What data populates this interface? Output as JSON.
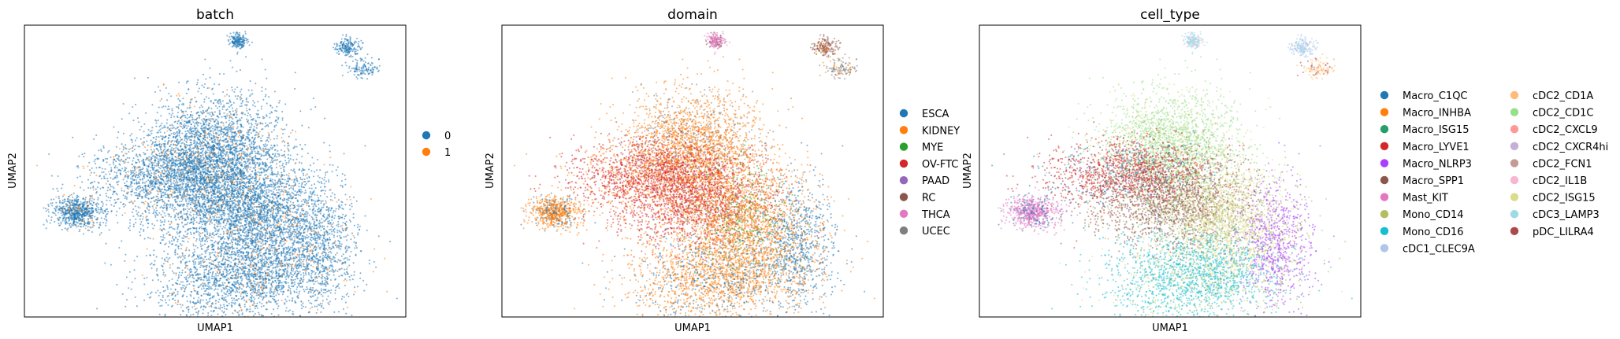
{
  "chart_data": [
    {
      "type": "scatter",
      "title": "batch",
      "xlabel": "UMAP1",
      "ylabel": "UMAP2",
      "ticks": "none",
      "legend_position": "right",
      "legend": [
        {
          "label": "0",
          "color": "#1f77b4"
        },
        {
          "label": "1",
          "color": "#ff7f0e"
        }
      ]
    },
    {
      "type": "scatter",
      "title": "domain",
      "xlabel": "UMAP1",
      "ylabel": "UMAP2",
      "ticks": "none",
      "legend_position": "right",
      "legend": [
        {
          "label": "ESCA",
          "color": "#1f77b4"
        },
        {
          "label": "KIDNEY",
          "color": "#ff7f0e"
        },
        {
          "label": "MYE",
          "color": "#2ca02c"
        },
        {
          "label": "OV-FTC",
          "color": "#d62728"
        },
        {
          "label": "PAAD",
          "color": "#9467bd"
        },
        {
          "label": "RC",
          "color": "#8c564b"
        },
        {
          "label": "THCA",
          "color": "#e377c2"
        },
        {
          "label": "UCEC",
          "color": "#7f7f7f"
        }
      ]
    },
    {
      "type": "scatter",
      "title": "cell_type",
      "xlabel": "UMAP1",
      "ylabel": "UMAP2",
      "ticks": "none",
      "legend_position": "right",
      "legend": [
        {
          "label": "Macro_C1QC",
          "color": "#1f77b4"
        },
        {
          "label": "Macro_INHBA",
          "color": "#ff7f0e"
        },
        {
          "label": "Macro_ISG15",
          "color": "#279e68"
        },
        {
          "label": "Macro_LYVE1",
          "color": "#d62728"
        },
        {
          "label": "Macro_NLRP3",
          "color": "#aa40fc"
        },
        {
          "label": "Macro_SPP1",
          "color": "#8c564b"
        },
        {
          "label": "Mast_KIT",
          "color": "#e377c2"
        },
        {
          "label": "Mono_CD14",
          "color": "#b5bd61"
        },
        {
          "label": "Mono_CD16",
          "color": "#17becf"
        },
        {
          "label": "cDC1_CLEC9A",
          "color": "#aec7e8"
        },
        {
          "label": "cDC2_CD1A",
          "color": "#ffbb78"
        },
        {
          "label": "cDC2_CD1C",
          "color": "#98df8a"
        },
        {
          "label": "cDC2_CXCL9",
          "color": "#ff9896"
        },
        {
          "label": "cDC2_CXCR4hi",
          "color": "#c5b0d5"
        },
        {
          "label": "cDC2_FCN1",
          "color": "#c49c94"
        },
        {
          "label": "cDC2_IL1B",
          "color": "#f7b6d2"
        },
        {
          "label": "cDC2_ISG15",
          "color": "#dbdb8d"
        },
        {
          "label": "cDC3_LAMP3",
          "color": "#9edae5"
        },
        {
          "label": "pDC_LILRA4",
          "color": "#ad494a"
        }
      ]
    }
  ]
}
